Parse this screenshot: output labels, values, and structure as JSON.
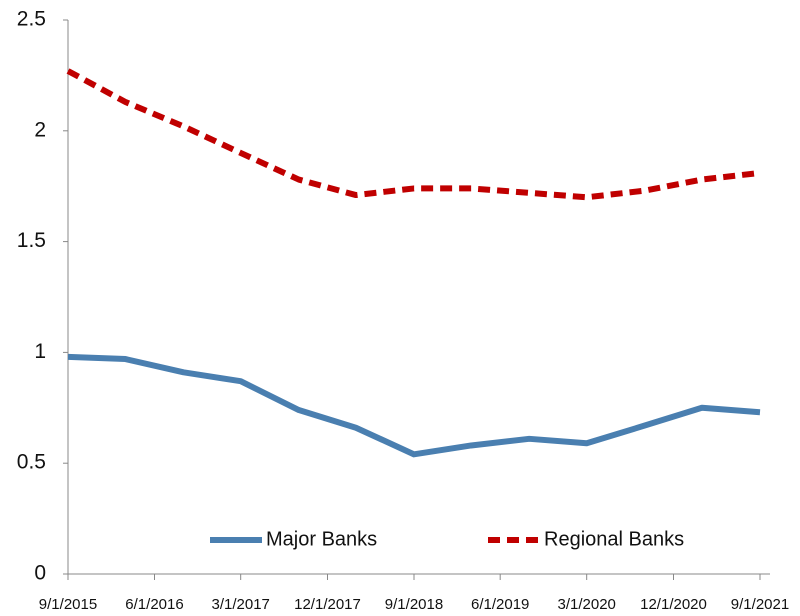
{
  "chart_data": {
    "type": "line",
    "x": [
      "9/1/2015",
      "3/1/2016",
      "9/1/2016",
      "3/1/2017",
      "9/1/2017",
      "3/1/2018",
      "9/1/2018",
      "3/1/2019",
      "9/1/2019",
      "3/1/2020",
      "9/1/2020",
      "3/1/2021",
      "9/1/2021"
    ],
    "series": [
      {
        "name": "Major Banks",
        "color": "#4a7fb0",
        "dash": false,
        "values": [
          0.98,
          0.97,
          0.91,
          0.87,
          0.74,
          0.66,
          0.54,
          0.58,
          0.61,
          0.59,
          0.67,
          0.75,
          0.73
        ]
      },
      {
        "name": "Regional Banks",
        "color": "#c00000",
        "dash": true,
        "values": [
          2.27,
          2.13,
          2.02,
          1.9,
          1.78,
          1.71,
          1.74,
          1.74,
          1.72,
          1.7,
          1.73,
          1.78,
          1.81
        ]
      }
    ],
    "xlim": [
      "9/1/2015",
      "9/1/2021"
    ],
    "xticks": [
      "9/1/2015",
      "6/1/2016",
      "3/1/2017",
      "12/1/2017",
      "9/1/2018",
      "6/1/2019",
      "3/1/2020",
      "12/1/2020",
      "9/1/2021"
    ],
    "ylim": [
      0,
      2.5
    ],
    "yticks": [
      0,
      0.5,
      1,
      1.5,
      2,
      2.5
    ],
    "grid": false,
    "legend": "bottom"
  }
}
